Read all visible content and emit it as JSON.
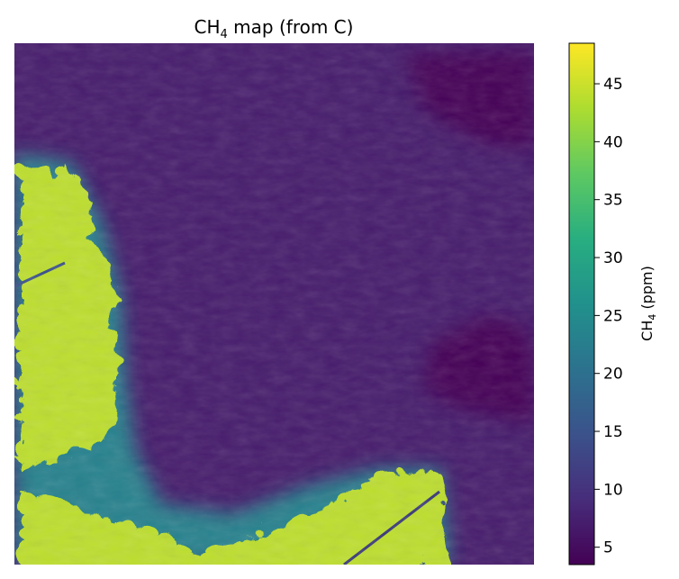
{
  "chart_data": {
    "type": "heatmap",
    "title_main": "CH",
    "title_sub": "4",
    "title_rest": " map (from C)",
    "colorbar": {
      "label_main": "CH",
      "label_sub": "4",
      "label_rest": " (ppm)",
      "range": [
        3.5,
        48.5
      ],
      "ticks": [
        5,
        10,
        15,
        20,
        25,
        30,
        35,
        40,
        45
      ],
      "tick_labels": [
        "5",
        "10",
        "15",
        "20",
        "25",
        "30",
        "35",
        "40",
        "45"
      ],
      "colormap": "viridis"
    },
    "axes_visible": false,
    "field": {
      "background_ppm": 7,
      "low_regions_ppm": 4,
      "high_regions_ppm": 44,
      "regions": [
        {
          "name": "left plume",
          "level": "high"
        },
        {
          "name": "bottom plume",
          "level": "high"
        },
        {
          "name": "top-right low",
          "level": "low"
        },
        {
          "name": "right low",
          "level": "low"
        }
      ]
    }
  }
}
